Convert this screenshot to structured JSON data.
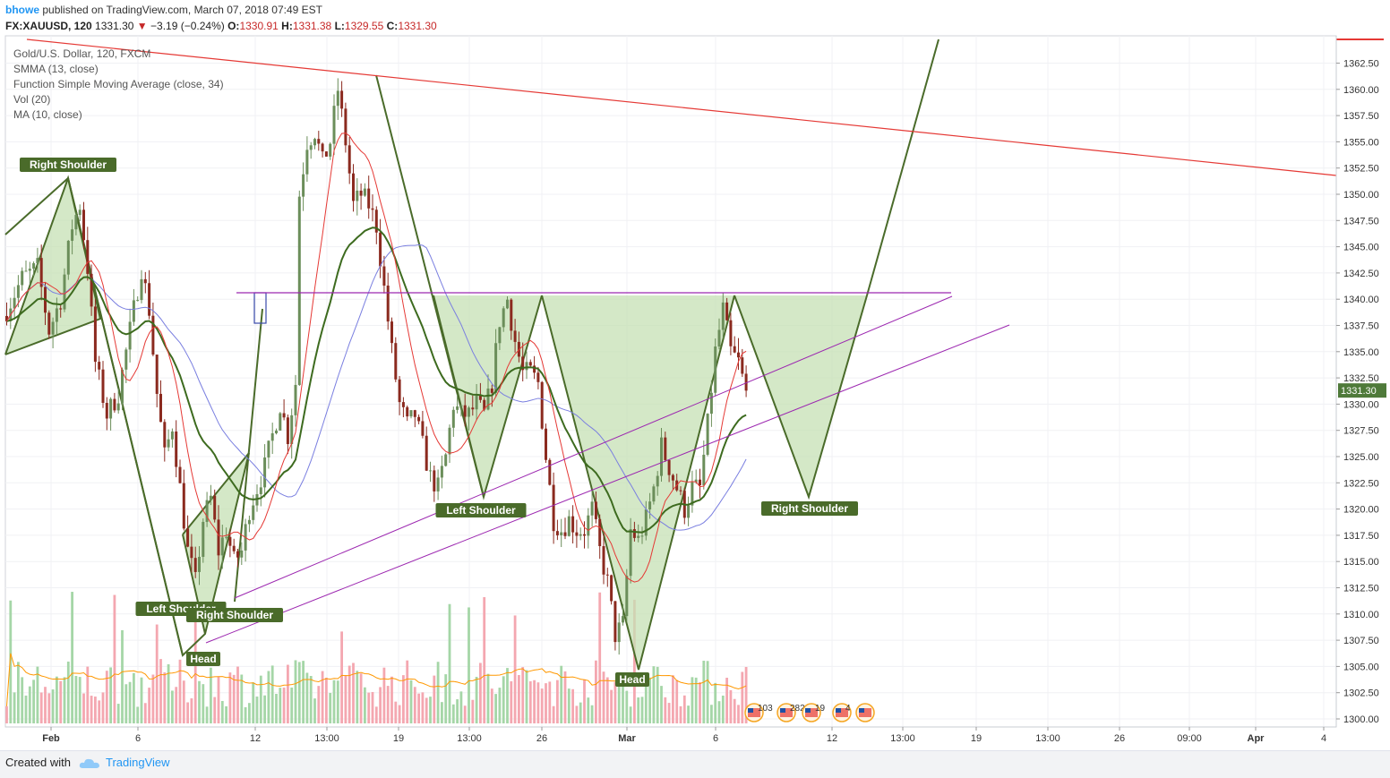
{
  "header": {
    "username": "bhowe",
    "published_text": "published on TradingView.com, March 07, 2018 07:49 EST",
    "symbol": "FX:XAUUSD, 120",
    "last": "1331.30",
    "change_arrow": "▼",
    "change": "−3.19 (−0.24%)",
    "o_label": "O:",
    "o_value": "1330.91",
    "h_label": "H:",
    "h_value": "1331.38",
    "l_label": "L:",
    "l_value": "1329.55",
    "c_label": "C:",
    "c_value": "1331.30"
  },
  "legend": [
    "Gold/U.S. Dollar, 120, FXCM",
    "SMMA (13, close)",
    "Function Simple Moving Average (close, 34)",
    "Vol (20)",
    "MA (10, close)"
  ],
  "footer": {
    "created": "Created with",
    "brand": "TradingView"
  },
  "colors": {
    "up": "#6b8e5a",
    "down": "#8b2a1f",
    "pattern": "#4a6b2a",
    "pattern_fill": "#c5e0b4",
    "trend_red": "#e53935",
    "channel": "#9c27b0",
    "smma": "#3d6b1f",
    "sma34": "#7a7fe0",
    "ma10": "#e53935",
    "vol_up": "#a5d6a7",
    "vol_down": "#f4a7b0",
    "vol_ma": "#ff9800",
    "price_tag": "#4f7a3a"
  },
  "chart_data": {
    "type": "candlestick",
    "title": "Gold/U.S. Dollar, 120, FXCM",
    "ylim": [
      1299,
      1365
    ],
    "y_ticks": [
      1300.0,
      1302.5,
      1305.0,
      1307.5,
      1310.0,
      1312.5,
      1315.0,
      1317.5,
      1320.0,
      1322.5,
      1325.0,
      1327.5,
      1330.0,
      1332.5,
      1335.0,
      1337.5,
      1340.0,
      1342.5,
      1345.0,
      1347.5,
      1350.0,
      1352.5,
      1355.0,
      1357.5,
      1360.0,
      1362.5
    ],
    "y_tick_labels": [
      "1300.00",
      "1302.50",
      "1305.00",
      "1307.50",
      "1310.00",
      "1312.50",
      "1315.00",
      "1317.50",
      "1320.00",
      "1322.50",
      "1325.00",
      "1327.50",
      "1330.00",
      "1332.50",
      "1335.00",
      "1337.50",
      "1340.00",
      "1342.50",
      "1345.00",
      "1347.50",
      "1350.00",
      "1352.50",
      "1355.00",
      "1357.50",
      "1360.00",
      "1362.50"
    ],
    "x_tick_labels": [
      "Feb",
      "6",
      "12",
      "13:00",
      "19",
      "13:00",
      "26",
      "Mar",
      "6",
      "12",
      "13:00",
      "19",
      "13:00",
      "26",
      "09:00",
      "Apr",
      "4"
    ],
    "x_tick_bold": [
      true,
      false,
      false,
      false,
      false,
      false,
      false,
      true,
      false,
      false,
      false,
      false,
      false,
      false,
      false,
      true,
      false
    ],
    "last_price": "1331.30",
    "close_path": [
      [
        0,
        1339
      ],
      [
        4,
        1342
      ],
      [
        8,
        1343
      ],
      [
        11,
        1337
      ],
      [
        14,
        1340
      ],
      [
        17,
        1347
      ],
      [
        19,
        1349
      ],
      [
        21,
        1343
      ],
      [
        23,
        1334
      ],
      [
        26,
        1329
      ],
      [
        29,
        1331
      ],
      [
        32,
        1337
      ],
      [
        35,
        1343
      ],
      [
        37,
        1339
      ],
      [
        39,
        1331
      ],
      [
        41,
        1325
      ],
      [
        43,
        1328
      ],
      [
        45,
        1322
      ],
      [
        47,
        1316
      ],
      [
        49,
        1313
      ],
      [
        51,
        1319
      ],
      [
        53,
        1321
      ],
      [
        55,
        1316
      ],
      [
        57,
        1318
      ],
      [
        59,
        1315
      ],
      [
        61,
        1316
      ],
      [
        63,
        1320
      ],
      [
        65,
        1322
      ],
      [
        67,
        1324
      ],
      [
        69,
        1327
      ],
      [
        71,
        1330
      ],
      [
        73,
        1327
      ],
      [
        75,
        1332
      ],
      [
        76,
        1350
      ],
      [
        78,
        1355
      ],
      [
        80,
        1356
      ],
      [
        82,
        1353
      ],
      [
        84,
        1355
      ],
      [
        86,
        1360
      ],
      [
        88,
        1355
      ],
      [
        90,
        1349
      ],
      [
        92,
        1350
      ],
      [
        94,
        1349
      ],
      [
        96,
        1347
      ],
      [
        98,
        1341
      ],
      [
        100,
        1335
      ],
      [
        102,
        1330
      ],
      [
        104,
        1328
      ],
      [
        106,
        1329
      ],
      [
        108,
        1326
      ],
      [
        110,
        1323
      ],
      [
        112,
        1322
      ],
      [
        114,
        1325
      ],
      [
        116,
        1330
      ],
      [
        118,
        1329
      ],
      [
        120,
        1329
      ],
      [
        122,
        1330
      ],
      [
        124,
        1329
      ],
      [
        126,
        1332
      ],
      [
        128,
        1338
      ],
      [
        130,
        1340
      ],
      [
        132,
        1336
      ],
      [
        134,
        1333
      ],
      [
        136,
        1333
      ],
      [
        138,
        1332
      ],
      [
        140,
        1325
      ],
      [
        142,
        1319
      ],
      [
        144,
        1318
      ],
      [
        146,
        1319
      ],
      [
        148,
        1318
      ],
      [
        150,
        1318
      ],
      [
        152,
        1320
      ],
      [
        154,
        1316
      ],
      [
        156,
        1313
      ],
      [
        158,
        1308
      ],
      [
        160,
        1309
      ],
      [
        162,
        1318
      ],
      [
        164,
        1317
      ],
      [
        166,
        1319
      ],
      [
        168,
        1322
      ],
      [
        170,
        1326
      ],
      [
        172,
        1324
      ],
      [
        174,
        1322
      ],
      [
        176,
        1320
      ],
      [
        178,
        1322
      ],
      [
        180,
        1322
      ],
      [
        182,
        1328
      ],
      [
        184,
        1335
      ],
      [
        186,
        1339
      ],
      [
        188,
        1335
      ],
      [
        190,
        1334
      ],
      [
        192,
        1331
      ]
    ],
    "annotations": [
      {
        "label": "Right Shoulder",
        "kind": "pattern-label"
      },
      {
        "label": "Left Shoulder",
        "kind": "pattern-label"
      },
      {
        "label": "Head",
        "kind": "pattern-label"
      },
      {
        "label": "Right Shoulder",
        "kind": "pattern-label"
      },
      {
        "label": "Left Shoulder",
        "kind": "pattern-label"
      },
      {
        "label": "Head",
        "kind": "pattern-label"
      },
      {
        "label": "Right Shoulder",
        "kind": "pattern-label"
      }
    ],
    "event_badges": [
      "103",
      "282",
      "19",
      "4",
      ""
    ],
    "indicators": [
      "SMMA (13, close)",
      "Function Simple Moving Average (close, 34)",
      "Vol (20)",
      "MA (10, close)"
    ]
  }
}
